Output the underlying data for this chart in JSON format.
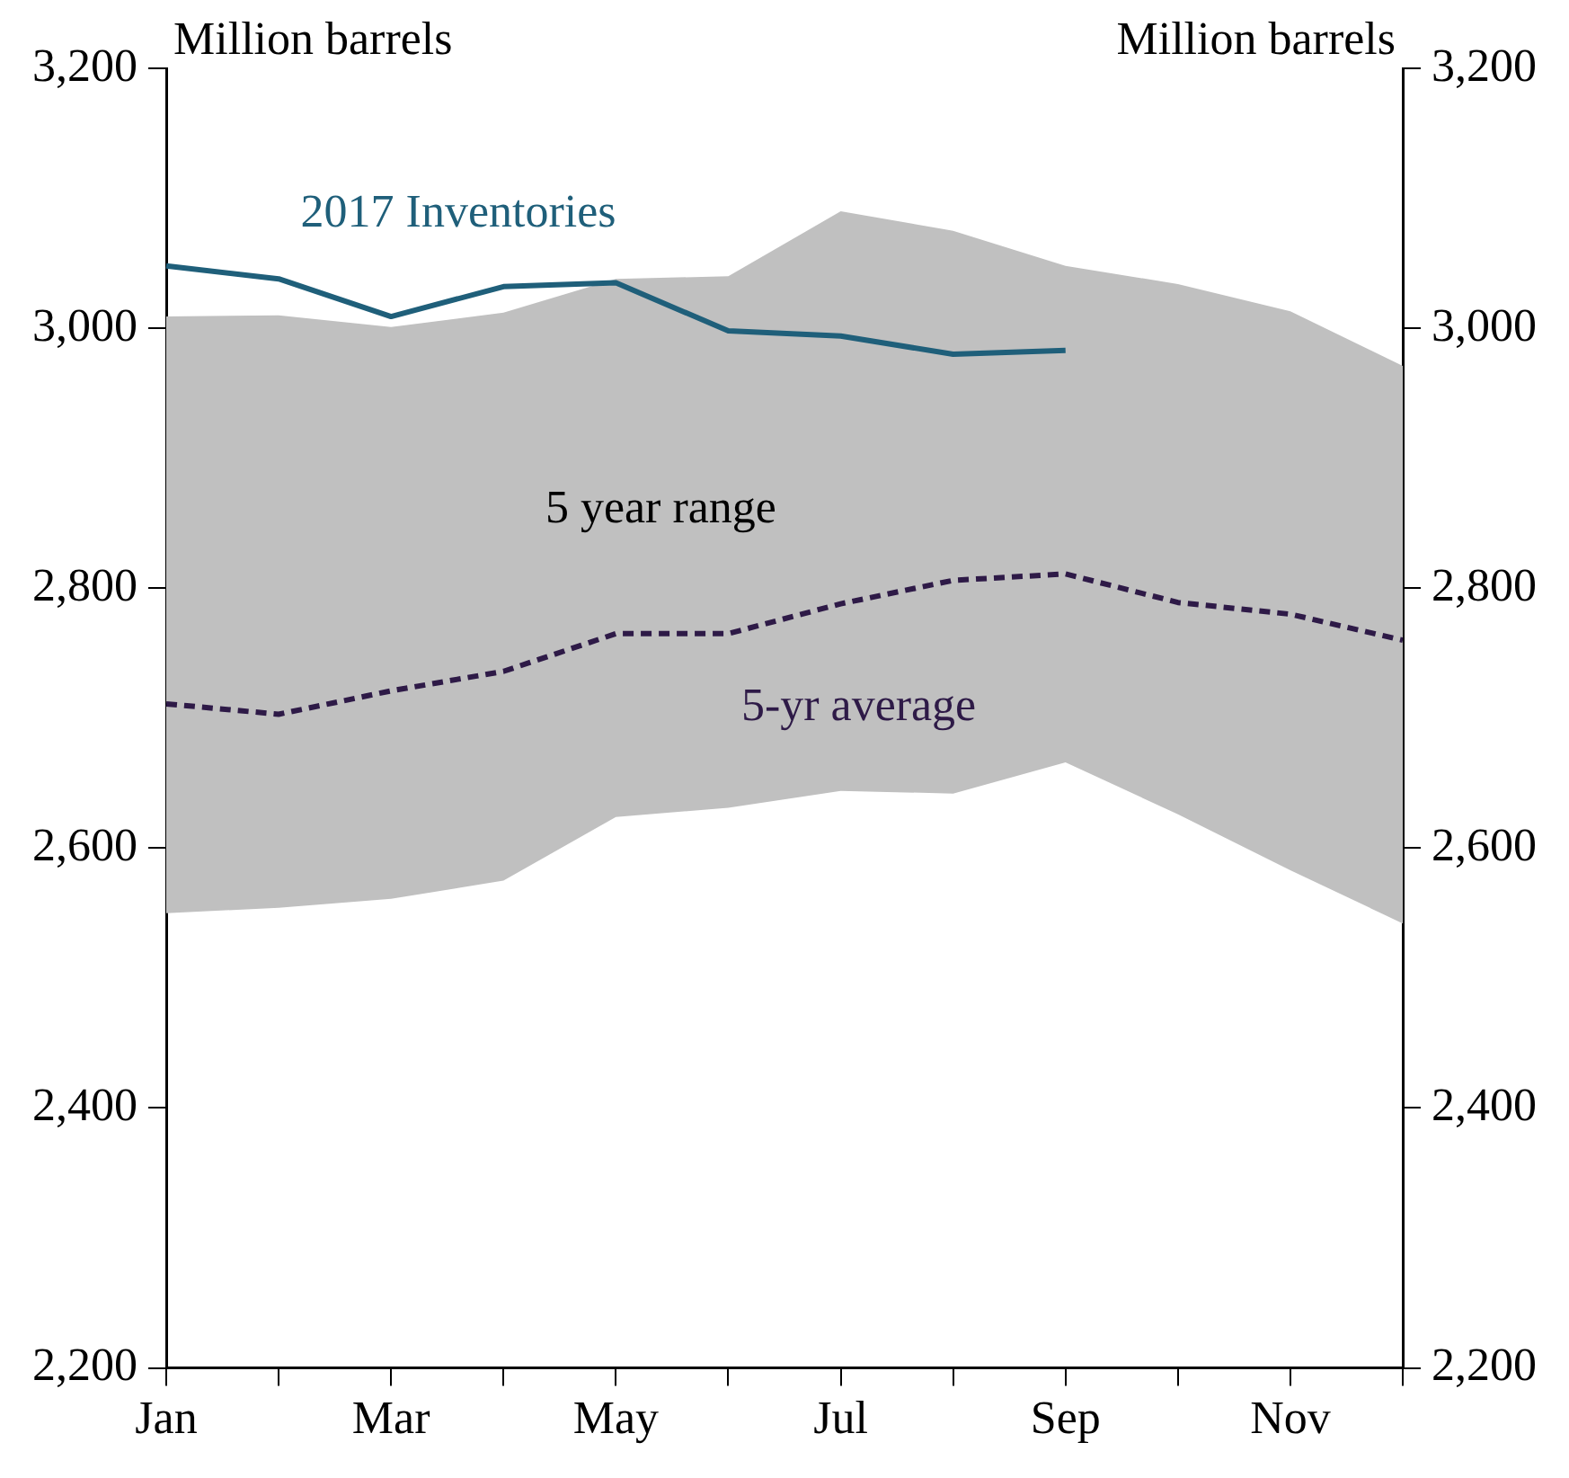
{
  "chart_data": {
    "type": "line",
    "ylabel": "Million barrels",
    "y2label": "Million barrels",
    "categories": [
      "Jan",
      null,
      "Mar",
      null,
      "May",
      null,
      "Jul",
      null,
      "Sep",
      null,
      "Nov",
      null
    ],
    "series": [
      {
        "name": "2017 Inventories",
        "color": "#1f5f7a",
        "line_style": "solid",
        "values": [
          3048,
          3038,
          3009,
          3032,
          3035,
          2998,
          2994,
          2980,
          2983,
          null,
          null,
          null
        ]
      },
      {
        "name": "5-yr average",
        "color": "#2e1a47",
        "line_style": "dashed",
        "values": [
          2711,
          2703,
          2721,
          2736,
          2765,
          2765,
          2788,
          2806,
          2811,
          2789,
          2780,
          2760
        ],
        "lower": [
          2550,
          2554,
          2561,
          2575,
          2624,
          2631,
          2644,
          2642,
          2666,
          2626,
          2583,
          2542
        ],
        "upper": [
          3009,
          3010,
          3001,
          3012,
          3038,
          3040,
          3090,
          3075,
          3048,
          3034,
          3013,
          2971
        ]
      }
    ],
    "annotations": [
      "5 year range"
    ],
    "ylim": [
      2200,
      3200
    ],
    "yticks": [
      {
        "value": 2200,
        "label": "2,200"
      },
      {
        "value": 2400,
        "label": "2,400"
      },
      {
        "value": 2600,
        "label": "2,600"
      },
      {
        "value": 2800,
        "label": "2,800"
      },
      {
        "value": 3000,
        "label": "3,000"
      },
      {
        "value": 3200,
        "label": "3,200"
      }
    ],
    "y2lim": [
      2200,
      3200
    ],
    "y2ticks": [
      {
        "value": 2200,
        "label": "2,200"
      },
      {
        "value": 2400,
        "label": "2,400"
      },
      {
        "value": 2600,
        "label": "2,600"
      },
      {
        "value": 2800,
        "label": "2,800"
      },
      {
        "value": 3000,
        "label": "3,000"
      },
      {
        "value": 3200,
        "label": "3,200"
      }
    ],
    "grid": false,
    "legend": false,
    "marker": "none"
  }
}
